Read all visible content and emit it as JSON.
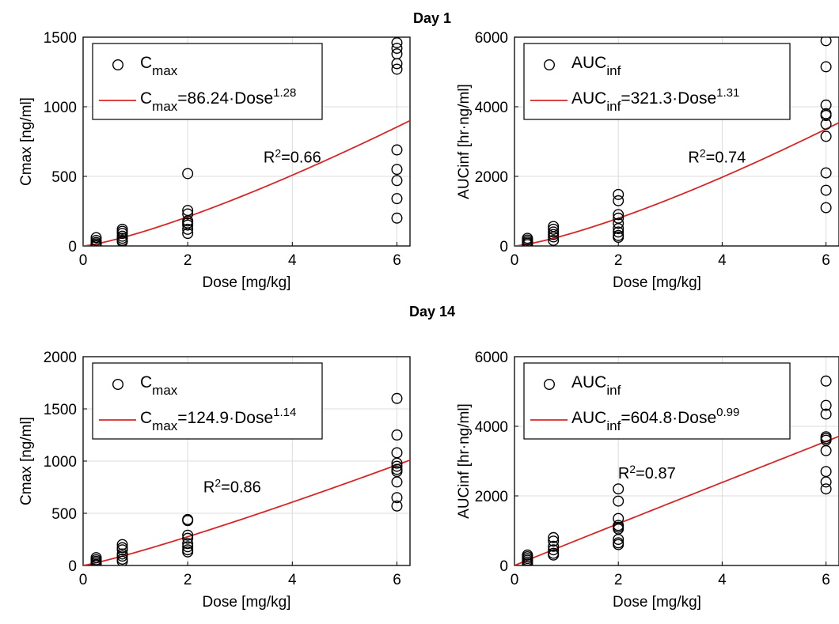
{
  "section_titles": [
    "Day 1",
    "Day 14"
  ],
  "colors": {
    "fit_line": "#d62728",
    "markers": "#000000",
    "grid": "#dcdcdc"
  },
  "chart_data": [
    {
      "type": "scatter",
      "day": "Day 1",
      "xlabel": "Dose [mg/kg]",
      "ylabel": "Cmax [ng/ml]",
      "xlim": [
        0,
        6.25
      ],
      "ylim": [
        0,
        1500
      ],
      "xticks": [
        0,
        2,
        4,
        6
      ],
      "yticks": [
        0,
        500,
        1000,
        1500
      ],
      "grid": true,
      "legend_position": "top-left",
      "legend": {
        "marker_base": "C",
        "marker_sub": "max",
        "fit_base": "C",
        "fit_sub": "max",
        "fit_mid": "=86.24·Dose",
        "fit_sup": "1.28"
      },
      "fit": {
        "a": 86.24,
        "b": 1.28
      },
      "r2": {
        "base": "R",
        "sup": "2",
        "rest": "=0.66",
        "x": 4.0,
        "y": 600
      },
      "points": {
        "x": [
          0.25,
          0.25,
          0.25,
          0.25,
          0.25,
          0.25,
          0.75,
          0.75,
          0.75,
          0.75,
          0.75,
          0.75,
          0.75,
          2,
          2,
          2,
          2,
          2,
          2,
          2,
          2,
          6,
          6,
          6,
          6,
          6,
          6,
          6,
          6,
          6,
          6
        ],
        "y": [
          60,
          40,
          25,
          15,
          5,
          0,
          120,
          105,
          90,
          70,
          55,
          40,
          30,
          520,
          255,
          230,
          180,
          150,
          120,
          90,
          165,
          1460,
          1420,
          1310,
          1270,
          690,
          550,
          470,
          340,
          200,
          1380
        ]
      }
    },
    {
      "type": "scatter",
      "day": "Day 1",
      "xlabel": "Dose [mg/kg]",
      "ylabel": "AUCinf [hr·ng/ml]",
      "xlim": [
        0,
        6.25
      ],
      "ylim": [
        0,
        6000
      ],
      "xticks": [
        0,
        2,
        4,
        6
      ],
      "yticks": [
        0,
        2000,
        4000,
        6000
      ],
      "grid": true,
      "legend_position": "top-left",
      "legend": {
        "marker_base": "AUC",
        "marker_sub": "inf",
        "fit_base": "AUC",
        "fit_sub": "inf",
        "fit_mid": "=321.3·Dose",
        "fit_sup": "1.31"
      },
      "fit": {
        "a": 321.3,
        "b": 1.31
      },
      "r2": {
        "base": "R",
        "sup": "2",
        "rest": "=0.74",
        "x": 3.9,
        "y": 2400
      },
      "points": {
        "x": [
          0.25,
          0.25,
          0.25,
          0.25,
          0.25,
          0.75,
          0.75,
          0.75,
          0.75,
          0.75,
          0.75,
          2,
          2,
          2,
          2,
          2,
          2,
          2,
          2,
          2,
          6,
          6,
          6,
          6,
          6,
          6,
          6,
          6,
          6,
          6
        ],
        "y": [
          220,
          170,
          120,
          80,
          40,
          560,
          480,
          400,
          330,
          260,
          160,
          1480,
          1300,
          900,
          800,
          650,
          500,
          400,
          300,
          250,
          5900,
          5150,
          4050,
          3800,
          3750,
          3150,
          2100,
          1600,
          1100,
          3500
        ]
      }
    },
    {
      "type": "scatter",
      "day": "Day 14",
      "xlabel": "Dose [mg/kg]",
      "ylabel": "Cmax [ng/ml]",
      "xlim": [
        0,
        6.25
      ],
      "ylim": [
        0,
        2000
      ],
      "xticks": [
        0,
        2,
        4,
        6
      ],
      "yticks": [
        0,
        500,
        1000,
        1500,
        2000
      ],
      "grid": true,
      "legend_position": "top-left",
      "legend": {
        "marker_base": "C",
        "marker_sub": "max",
        "fit_base": "C",
        "fit_sub": "max",
        "fit_mid": "=124.9·Dose",
        "fit_sup": "1.14"
      },
      "fit": {
        "a": 124.9,
        "b": 1.14
      },
      "r2": {
        "base": "R",
        "sup": "2",
        "rest": "=0.86",
        "x": 2.85,
        "y": 700
      },
      "points": {
        "x": [
          0.25,
          0.25,
          0.25,
          0.25,
          0.25,
          0.25,
          0.75,
          0.75,
          0.75,
          0.75,
          0.75,
          0.75,
          0.75,
          2,
          2,
          2,
          2,
          2,
          2,
          2,
          2,
          6,
          6,
          6,
          6,
          6,
          6,
          6,
          6,
          6,
          6
        ],
        "y": [
          75,
          55,
          40,
          25,
          10,
          0,
          200,
          170,
          150,
          110,
          90,
          60,
          40,
          440,
          430,
          290,
          260,
          210,
          180,
          150,
          130,
          1600,
          1250,
          1080,
          980,
          950,
          920,
          800,
          650,
          570,
          900
        ]
      }
    },
    {
      "type": "scatter",
      "day": "Day 14",
      "xlabel": "Dose [mg/kg]",
      "ylabel": "AUCinf [hr·ng/ml]",
      "xlim": [
        0,
        6.25
      ],
      "ylim": [
        0,
        6000
      ],
      "xticks": [
        0,
        2,
        4,
        6
      ],
      "yticks": [
        0,
        2000,
        4000,
        6000
      ],
      "grid": true,
      "legend_position": "top-left",
      "legend": {
        "marker_base": "AUC",
        "marker_sub": "inf",
        "fit_base": "AUC",
        "fit_sub": "inf",
        "fit_mid": "=604.8·Dose",
        "fit_sup": "0.99"
      },
      "fit": {
        "a": 604.8,
        "b": 0.99
      },
      "r2": {
        "base": "R",
        "sup": "2",
        "rest": "=0.87",
        "x": 2.55,
        "y": 2500
      },
      "points": {
        "x": [
          0.25,
          0.25,
          0.25,
          0.25,
          0.25,
          0.25,
          0.75,
          0.75,
          0.75,
          0.75,
          0.75,
          0.75,
          2,
          2,
          2,
          2,
          2,
          2,
          2,
          2,
          2,
          6,
          6,
          6,
          6,
          6,
          6,
          6,
          6,
          6,
          6
        ],
        "y": [
          300,
          250,
          200,
          150,
          100,
          50,
          800,
          700,
          550,
          450,
          350,
          300,
          2200,
          1850,
          1350,
          1150,
          1100,
          1050,
          750,
          650,
          600,
          5300,
          4600,
          4350,
          3700,
          3600,
          3300,
          2700,
          2400,
          2200,
          3650
        ]
      }
    }
  ]
}
